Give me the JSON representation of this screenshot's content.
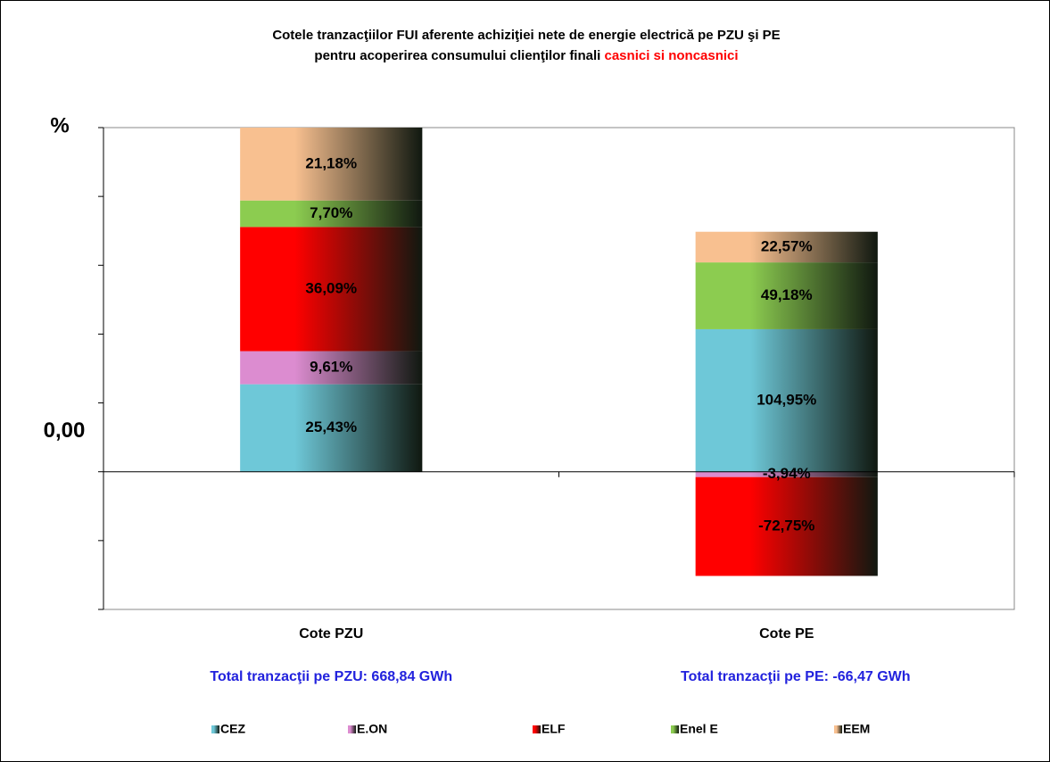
{
  "chart_data": {
    "type": "bar",
    "stack": "percent",
    "title": {
      "line1": "Cotele tranzacţiilor FUI aferente achiziţiei nete de energie electrică  pe PZU şi PE",
      "line2": "pentru acoperirea consumului clienţilor finali",
      "line2_highlight": "casnici si noncasnici"
    },
    "y_label": "%",
    "categories": [
      "Cote PZU",
      "Cote PE"
    ],
    "category_notes": [
      "Total  tranzacţii pe PZU: 668,84 GWh",
      "Total tranzacţii pe PE: -66,47 GWh"
    ],
    "series": [
      {
        "name": "CEZ",
        "color": "#6ec8d8",
        "values": [
          25.43,
          104.95
        ],
        "value_labels": [
          "25,43%",
          "104,95%"
        ]
      },
      {
        "name": "E.ON",
        "color": "#dc8cd0",
        "values": [
          9.61,
          -3.94
        ],
        "value_labels": [
          "9,61%",
          "-3,94%"
        ]
      },
      {
        "name": "ELF",
        "color": "#ff0000",
        "values": [
          36.09,
          -72.75
        ],
        "value_labels": [
          "36,09%",
          "-72,75%"
        ]
      },
      {
        "name": "Enel E",
        "color": "#8ccc50",
        "values": [
          7.7,
          49.18
        ],
        "value_labels": [
          "7,70%",
          "49,18%"
        ]
      },
      {
        "name": "EEM",
        "color": "#f8c090",
        "values": [
          21.18,
          22.57
        ],
        "value_labels": [
          "21,18%",
          "22,57%"
        ]
      }
    ],
    "ylim": [
      -40,
      100
    ],
    "yticks": [
      {
        "value": 0,
        "label": "0,00"
      }
    ],
    "minor_yticks": [
      -40,
      -20,
      20,
      40,
      60,
      80,
      100
    ],
    "grid": false,
    "legend": "bottom"
  }
}
